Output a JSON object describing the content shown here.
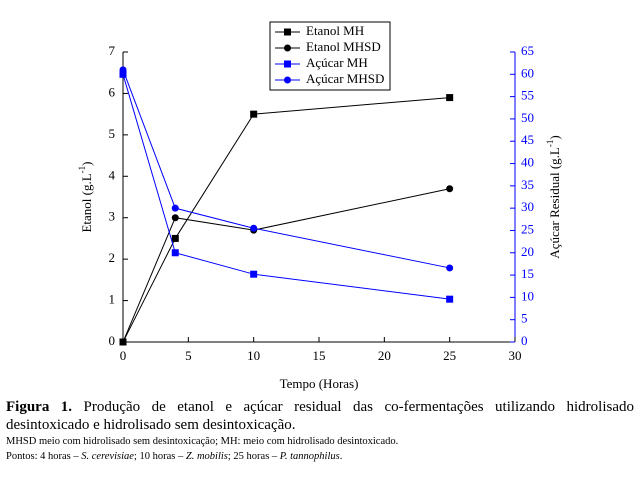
{
  "chart_data": {
    "type": "line",
    "xlabel": "Tempo (Horas)",
    "ylabel": {
      "text": "Etanol (g.L",
      "sup": "-1",
      "end": ")"
    },
    "y2label": {
      "text": "Açúcar Residual (g.L",
      "sup": "-1",
      "end": ")"
    },
    "x": [
      0,
      4,
      10,
      25
    ],
    "xlim": [
      0,
      30
    ],
    "xticks": [
      0,
      5,
      10,
      15,
      20,
      25,
      30
    ],
    "ylim": [
      0,
      7
    ],
    "yticks": [
      0,
      1,
      2,
      3,
      4,
      5,
      6,
      7
    ],
    "y2lim": [
      0,
      65
    ],
    "y2ticks": [
      0,
      5,
      10,
      15,
      20,
      25,
      30,
      35,
      40,
      45,
      50,
      55,
      60,
      65
    ],
    "y2color": "#0000ff",
    "legend": "top",
    "series": [
      {
        "name": "Etanol MH",
        "color": "#000000",
        "marker": "square",
        "values": [
          0,
          2.5,
          5.5,
          5.9
        ]
      },
      {
        "name": "Etanol MHSD",
        "color": "#000000",
        "marker": "circle",
        "values": [
          0,
          3.0,
          2.7,
          3.7
        ]
      },
      {
        "name": "Açúcar MH",
        "color": "#0000ff",
        "marker": "square",
        "axis": "y2",
        "values": [
          60,
          20,
          15.2,
          9.6
        ]
      },
      {
        "name": "Açúcar MHSD",
        "color": "#0000ff",
        "marker": "circle",
        "axis": "y2",
        "values": [
          61,
          30,
          25.5,
          16.6
        ]
      }
    ]
  },
  "caption": {
    "label": "Figura 1.",
    "text": "Produção de etanol e açúcar residual das co-fermentações utilizando hidrolisado desintoxicado e hidrolisado sem desintoxicação.",
    "note": "MHSD meio com hidrolisado sem desintoxicação; MH: meio com hidrolisado desintoxicado.",
    "points": [
      "Pontos: 4 horas – ",
      "S. cerevisiae",
      ";  10 horas – ",
      "Z. mobilis",
      "; 25 horas – ",
      "P. tannophilus",
      "."
    ]
  }
}
